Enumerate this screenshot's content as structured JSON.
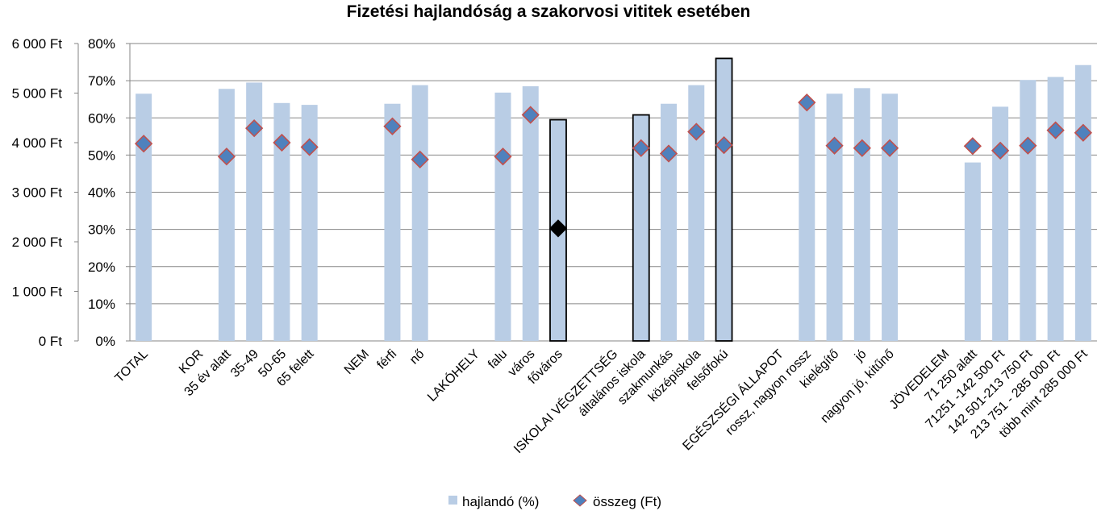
{
  "chart_data": {
    "type": "bar",
    "title": "Fizetési hajlandóság a szakorvosi vititek esetében",
    "xlabel": "",
    "ylabel": "",
    "y_left": {
      "ticks": [
        "0 Ft",
        "1 000 Ft",
        "2 000 Ft",
        "3 000 Ft",
        "4 000 Ft",
        "5 000 Ft",
        "6 000 Ft"
      ],
      "range": [
        0,
        6000
      ]
    },
    "y_right": {
      "ticks": [
        "0%",
        "10%",
        "20%",
        "30%",
        "40%",
        "50%",
        "60%",
        "70%",
        "80%"
      ],
      "range": [
        0,
        80
      ]
    },
    "grid": true,
    "legend_position": "bottom",
    "categories": [
      "TOTAL",
      "",
      "KOR",
      "35 év alatt",
      "35-49",
      "50-65",
      "65 felett",
      "",
      "NEM",
      "férfi",
      "nő",
      "",
      "LAKÓHELY",
      "falu",
      "város",
      "főváros",
      "",
      "ISKOLAI VÉGZETTSÉG",
      "általános iskola",
      "szakmunkás",
      "középiskola",
      "felsőfokú",
      "",
      "EGÉSZSÉGI ÁLLAPOT",
      "rossz, nagyon rossz",
      "kielégítő",
      "jó",
      "nagyon jó, kitűnő",
      "",
      "JÖVEDELEM",
      "71 250 alatt",
      "71251 -142 500 Ft",
      "142 501-213 750 Ft",
      "213 751 - 285 000 Ft",
      "több mint 285 000 Ft"
    ],
    "series": [
      {
        "name": "hajlandó (%)",
        "kind": "bar",
        "axis": "right",
        "color": "#b9cde5",
        "values": [
          66.5,
          null,
          null,
          67.8,
          69.5,
          64,
          63.5,
          null,
          null,
          63.8,
          68.8,
          null,
          null,
          66.8,
          68.5,
          59.5,
          null,
          null,
          60.8,
          63.8,
          68.8,
          76,
          null,
          null,
          64,
          66.5,
          68,
          66.5,
          null,
          null,
          48,
          63,
          70.2,
          71,
          74.2
        ],
        "highlighted": [
          "főváros",
          "általános iskola",
          "felsőfokú"
        ],
        "highlight_border": "#000000"
      },
      {
        "name": "összeg (Ft)",
        "kind": "marker",
        "axis": "left",
        "color": "#4f81bd",
        "border": "#c0504d",
        "values": [
          3980,
          null,
          null,
          3720,
          4290,
          4000,
          3910,
          null,
          null,
          4330,
          3660,
          null,
          null,
          3720,
          4560,
          2270,
          null,
          null,
          3890,
          3780,
          4220,
          3950,
          null,
          null,
          4810,
          3940,
          3890,
          3890,
          null,
          null,
          3930,
          3840,
          3940,
          4250,
          4200
        ],
        "special": {
          "category": "főváros",
          "color": "#000000"
        }
      }
    ]
  }
}
